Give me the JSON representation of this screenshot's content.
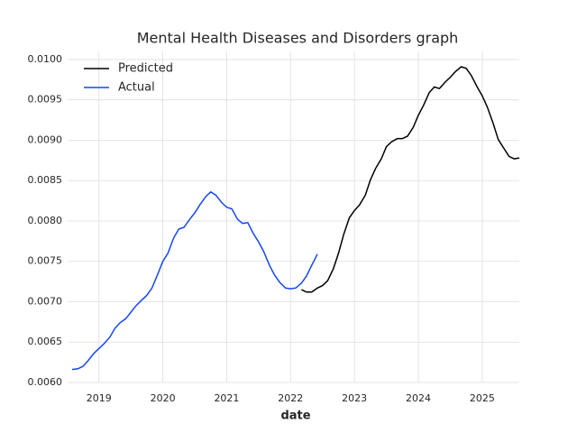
{
  "chart_data": {
    "type": "line",
    "title": "Mental Health Diseases and Disorders graph",
    "x_label": "date",
    "xlim": [
      2018.51,
      2025.58
    ],
    "xticks": [
      2019,
      2020,
      2021,
      2022,
      2023,
      2024,
      2025
    ],
    "ylim": [
      0.006,
      0.0101
    ],
    "yticks": [
      {
        "value": 0.006,
        "label": "0.0060"
      },
      {
        "value": 0.0065,
        "label": "0.0065"
      },
      {
        "value": 0.007,
        "label": "0.0070"
      },
      {
        "value": 0.0075,
        "label": "0.0075"
      },
      {
        "value": 0.008,
        "label": "0.0080"
      },
      {
        "value": 0.0085,
        "label": "0.0085"
      },
      {
        "value": 0.009,
        "label": "0.0090"
      },
      {
        "value": 0.0095,
        "label": "0.0095"
      },
      {
        "value": 0.01,
        "label": "0.0100"
      }
    ],
    "grid": true,
    "legend": "upper left",
    "series": [
      {
        "name": "Predicted",
        "color": "#000000",
        "x": [
          2022.17,
          2022.25,
          2022.33,
          2022.42,
          2022.5,
          2022.58,
          2022.67,
          2022.75,
          2022.83,
          2022.92,
          2023.0,
          2023.08,
          2023.17,
          2023.25,
          2023.33,
          2023.42,
          2023.5,
          2023.58,
          2023.67,
          2023.75,
          2023.83,
          2023.92,
          2024.0,
          2024.08,
          2024.17,
          2024.25,
          2024.33,
          2024.42,
          2024.5,
          2024.58,
          2024.67,
          2024.75,
          2024.83,
          2024.92,
          2025.0,
          2025.08,
          2025.17,
          2025.25,
          2025.33,
          2025.42,
          2025.5,
          2025.58
        ],
        "values": [
          0.00715,
          0.00712,
          0.00712,
          0.00717,
          0.0072,
          0.00726,
          0.00741,
          0.0076,
          0.00783,
          0.00804,
          0.00813,
          0.0082,
          0.00832,
          0.00851,
          0.00865,
          0.00877,
          0.00892,
          0.00898,
          0.00902,
          0.00902,
          0.00905,
          0.00916,
          0.00931,
          0.00943,
          0.00959,
          0.00966,
          0.00964,
          0.00972,
          0.00978,
          0.00985,
          0.00991,
          0.00989,
          0.0098,
          0.00966,
          0.00955,
          0.00941,
          0.00921,
          0.00901,
          0.00891,
          0.0088,
          0.00877,
          0.00878
        ]
      },
      {
        "name": "Actual",
        "color": "#1546f0",
        "x": [
          2018.58,
          2018.67,
          2018.75,
          2018.83,
          2018.92,
          2019.0,
          2019.08,
          2019.17,
          2019.25,
          2019.33,
          2019.42,
          2019.5,
          2019.58,
          2019.67,
          2019.75,
          2019.83,
          2019.92,
          2020.0,
          2020.08,
          2020.17,
          2020.25,
          2020.33,
          2020.42,
          2020.5,
          2020.58,
          2020.67,
          2020.75,
          2020.83,
          2020.92,
          2021.0,
          2021.08,
          2021.17,
          2021.25,
          2021.33,
          2021.42,
          2021.5,
          2021.58,
          2021.67,
          2021.75,
          2021.83,
          2021.92,
          2022.0,
          2022.08,
          2022.17,
          2022.25,
          2022.33,
          2022.42
        ],
        "values": [
          0.00616,
          0.00617,
          0.0062,
          0.00627,
          0.00636,
          0.00642,
          0.00648,
          0.00656,
          0.00667,
          0.00674,
          0.00679,
          0.00687,
          0.00695,
          0.00702,
          0.00708,
          0.00717,
          0.00734,
          0.0075,
          0.0076,
          0.00779,
          0.0079,
          0.00792,
          0.00802,
          0.0081,
          0.0082,
          0.0083,
          0.00836,
          0.00832,
          0.00823,
          0.00817,
          0.00815,
          0.00802,
          0.00797,
          0.00798,
          0.00784,
          0.00774,
          0.00762,
          0.00745,
          0.00733,
          0.00724,
          0.00717,
          0.00716,
          0.00717,
          0.00723,
          0.00732,
          0.00745,
          0.00759
        ]
      }
    ]
  }
}
